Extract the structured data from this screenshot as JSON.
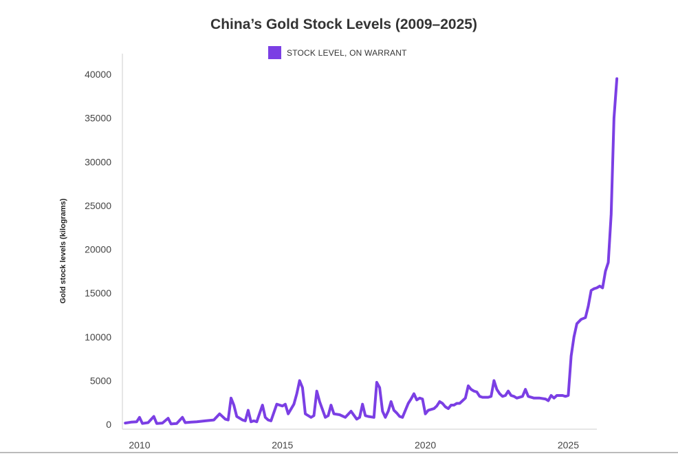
{
  "chart_data": {
    "type": "line",
    "title": "China’s Gold Stock Levels (2009–2025)",
    "ylabel": "Gold stock levels (kilograms)",
    "xlabel": "",
    "xlim": [
      2009.4,
      2026.0
    ],
    "ylim": [
      0,
      40000
    ],
    "x_ticks": [
      2010,
      2015,
      2020,
      2025
    ],
    "y_ticks": [
      0,
      5000,
      10000,
      15000,
      20000,
      25000,
      30000,
      35000,
      40000
    ],
    "grid": false,
    "legend_position": "top-center",
    "colors": {
      "series": "#7b3fe4",
      "axis": "#dddddd"
    },
    "series": [
      {
        "name": "STOCK LEVEL, ON WARRANT",
        "points": [
          [
            2009.5,
            150
          ],
          [
            2009.7,
            250
          ],
          [
            2009.9,
            300
          ],
          [
            2010.0,
            800
          ],
          [
            2010.1,
            100
          ],
          [
            2010.3,
            200
          ],
          [
            2010.5,
            900
          ],
          [
            2010.6,
            100
          ],
          [
            2010.8,
            150
          ],
          [
            2011.0,
            700
          ],
          [
            2011.1,
            50
          ],
          [
            2011.3,
            100
          ],
          [
            2011.5,
            800
          ],
          [
            2011.6,
            200
          ],
          [
            2011.8,
            250
          ],
          [
            2012.0,
            300
          ],
          [
            2012.3,
            400
          ],
          [
            2012.6,
            500
          ],
          [
            2012.8,
            1200
          ],
          [
            2013.0,
            600
          ],
          [
            2013.1,
            500
          ],
          [
            2013.2,
            3000
          ],
          [
            2013.3,
            2200
          ],
          [
            2013.4,
            900
          ],
          [
            2013.6,
            500
          ],
          [
            2013.7,
            400
          ],
          [
            2013.8,
            1600
          ],
          [
            2013.9,
            300
          ],
          [
            2014.0,
            400
          ],
          [
            2014.1,
            300
          ],
          [
            2014.3,
            2200
          ],
          [
            2014.4,
            800
          ],
          [
            2014.5,
            500
          ],
          [
            2014.6,
            400
          ],
          [
            2014.8,
            2300
          ],
          [
            2015.0,
            2100
          ],
          [
            2015.1,
            2300
          ],
          [
            2015.2,
            1200
          ],
          [
            2015.4,
            2300
          ],
          [
            2015.5,
            3500
          ],
          [
            2015.6,
            5000
          ],
          [
            2015.7,
            4200
          ],
          [
            2015.8,
            1200
          ],
          [
            2016.0,
            800
          ],
          [
            2016.1,
            1000
          ],
          [
            2016.2,
            3800
          ],
          [
            2016.3,
            2600
          ],
          [
            2016.5,
            800
          ],
          [
            2016.6,
            1000
          ],
          [
            2016.7,
            2200
          ],
          [
            2016.8,
            1200
          ],
          [
            2017.0,
            1100
          ],
          [
            2017.2,
            800
          ],
          [
            2017.4,
            1500
          ],
          [
            2017.6,
            600
          ],
          [
            2017.7,
            800
          ],
          [
            2017.8,
            2300
          ],
          [
            2017.9,
            1000
          ],
          [
            2018.0,
            900
          ],
          [
            2018.2,
            800
          ],
          [
            2018.3,
            4800
          ],
          [
            2018.4,
            4200
          ],
          [
            2018.5,
            1500
          ],
          [
            2018.6,
            800
          ],
          [
            2018.7,
            1500
          ],
          [
            2018.8,
            2600
          ],
          [
            2018.9,
            1600
          ],
          [
            2019.0,
            1300
          ],
          [
            2019.1,
            900
          ],
          [
            2019.2,
            800
          ],
          [
            2019.4,
            2400
          ],
          [
            2019.5,
            2900
          ],
          [
            2019.6,
            3500
          ],
          [
            2019.7,
            2800
          ],
          [
            2019.8,
            3000
          ],
          [
            2019.9,
            2900
          ],
          [
            2020.0,
            1200
          ],
          [
            2020.1,
            1600
          ],
          [
            2020.3,
            1800
          ],
          [
            2020.4,
            2100
          ],
          [
            2020.5,
            2600
          ],
          [
            2020.6,
            2400
          ],
          [
            2020.7,
            2000
          ],
          [
            2020.8,
            1800
          ],
          [
            2020.9,
            2200
          ],
          [
            2021.0,
            2200
          ],
          [
            2021.1,
            2400
          ],
          [
            2021.2,
            2400
          ],
          [
            2021.4,
            3000
          ],
          [
            2021.5,
            4400
          ],
          [
            2021.6,
            4000
          ],
          [
            2021.7,
            3800
          ],
          [
            2021.8,
            3700
          ],
          [
            2021.9,
            3200
          ],
          [
            2022.0,
            3100
          ],
          [
            2022.2,
            3100
          ],
          [
            2022.3,
            3200
          ],
          [
            2022.4,
            5000
          ],
          [
            2022.5,
            4000
          ],
          [
            2022.6,
            3500
          ],
          [
            2022.7,
            3200
          ],
          [
            2022.8,
            3300
          ],
          [
            2022.9,
            3800
          ],
          [
            2023.0,
            3300
          ],
          [
            2023.1,
            3200
          ],
          [
            2023.2,
            3000
          ],
          [
            2023.4,
            3200
          ],
          [
            2023.5,
            4000
          ],
          [
            2023.6,
            3200
          ],
          [
            2023.8,
            3000
          ],
          [
            2024.0,
            3000
          ],
          [
            2024.2,
            2900
          ],
          [
            2024.3,
            2700
          ],
          [
            2024.4,
            3300
          ],
          [
            2024.5,
            3000
          ],
          [
            2024.6,
            3300
          ],
          [
            2024.8,
            3300
          ],
          [
            2024.9,
            3200
          ],
          [
            2025.0,
            3300
          ],
          [
            2025.1,
            7800
          ],
          [
            2025.2,
            10000
          ],
          [
            2025.3,
            11500
          ],
          [
            2025.45,
            12000
          ],
          [
            2025.6,
            12200
          ],
          [
            2025.7,
            13500
          ],
          [
            2025.8,
            15300
          ],
          [
            2025.9,
            15500
          ],
          [
            2026.0,
            15600
          ],
          [
            2026.1,
            15800
          ],
          [
            2026.2,
            15600
          ],
          [
            2026.3,
            17500
          ],
          [
            2026.4,
            18500
          ],
          [
            2026.5,
            24000
          ],
          [
            2026.6,
            35000
          ],
          [
            2026.7,
            39500
          ]
        ]
      }
    ]
  }
}
